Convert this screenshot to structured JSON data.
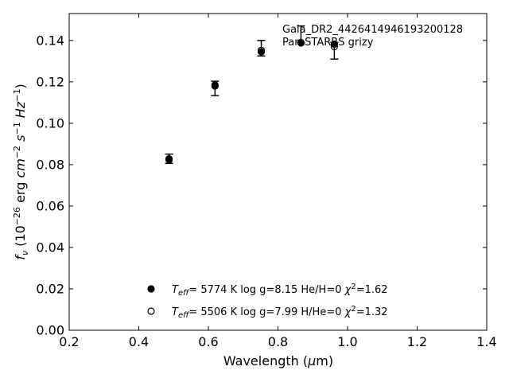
{
  "chart_data": {
    "type": "scatter",
    "title": "",
    "xlabel": "Wavelength (μm)",
    "ylabel": "f_ν (10^-26 erg cm^-2 s^-1 Hz^-1)",
    "xlim": [
      0.2,
      1.4
    ],
    "ylim": [
      0.0,
      0.153
    ],
    "xticks": [
      0.2,
      0.4,
      0.6,
      0.8,
      1.0,
      1.2,
      1.4
    ],
    "xtick_labels": [
      "0.2",
      "0.4",
      "0.6",
      "0.8",
      "1.0",
      "1.2",
      "1.4"
    ],
    "yticks": [
      0.0,
      0.02,
      0.04,
      0.06,
      0.08,
      0.1,
      0.12,
      0.14
    ],
    "ytick_labels": [
      "0.00",
      "0.02",
      "0.04",
      "0.06",
      "0.08",
      "0.10",
      "0.12",
      "0.14"
    ],
    "grid": false,
    "annotation": {
      "line1": "Gaia_DR2_4426414946193200128",
      "line2": "Pan-STARRS grizy"
    },
    "observed": {
      "x": [
        0.487,
        0.619,
        0.752,
        0.866,
        0.962
      ],
      "y": [
        0.0826,
        0.1178,
        0.1355,
        0.139,
        0.138
      ],
      "yerr_low": [
        0.002,
        0.0045,
        0.003,
        0.0,
        0.007
      ],
      "yerr_high": [
        0.0025,
        0.0025,
        0.0045,
        0.008,
        0.001
      ]
    },
    "series": [
      {
        "marker": "filled-circle",
        "x": [
          0.487,
          0.619,
          0.752,
          0.866,
          0.962
        ],
        "y": [
          0.0823,
          0.118,
          0.1345,
          0.1388,
          0.1382
        ],
        "label": {
          "teff_sym": "T",
          "teff_sub": "eff",
          "eq": "=",
          "teff": "5774 K",
          "logg": "log g=8.15",
          "comp": "He/H=0",
          "chi_sym": "χ",
          "chi_sup": "2",
          "chi": "=1.62"
        }
      },
      {
        "marker": "open-circle",
        "x": [
          0.487,
          0.619,
          0.752,
          0.866,
          0.962
        ],
        "y": [
          0.0828,
          0.1185,
          0.1352,
          0.139,
          0.137
        ],
        "label": {
          "teff_sym": "T",
          "teff_sub": "eff",
          "eq": "=",
          "teff": "5506 K",
          "logg": "log g=7.99",
          "comp": "H/He=0",
          "chi_sym": "χ",
          "chi_sup": "2",
          "chi": "=1.32"
        }
      }
    ]
  }
}
